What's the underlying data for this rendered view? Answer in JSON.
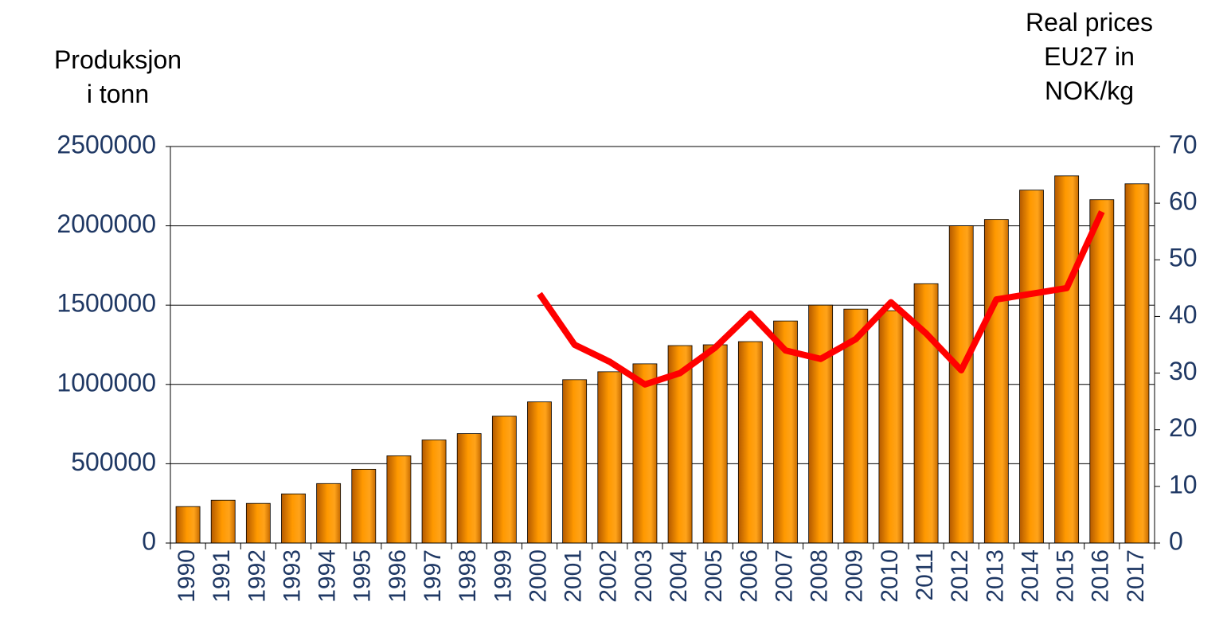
{
  "chart_data": {
    "type": "bar",
    "y_label": [
      "Produksjon",
      "i tonn"
    ],
    "y2_label": [
      "Real prices",
      "EU27 in",
      "NOK/kg"
    ],
    "categories": [
      "1990",
      "1991",
      "1992",
      "1993",
      "1994",
      "1995",
      "1996",
      "1997",
      "1998",
      "1999",
      "2000",
      "2001",
      "2002",
      "2003",
      "2004",
      "2005",
      "2006",
      "2007",
      "2008",
      "2009",
      "2010",
      "2011",
      "2012",
      "2013",
      "2014",
      "2015",
      "2016",
      "2017"
    ],
    "series": [
      {
        "type": "bar",
        "color": "#ff9900",
        "values": [
          230000,
          270000,
          250000,
          310000,
          375000,
          465000,
          550000,
          650000,
          690000,
          800000,
          890000,
          1030000,
          1080000,
          1130000,
          1245000,
          1250000,
          1270000,
          1400000,
          1500000,
          1475000,
          1465000,
          1635000,
          2000000,
          2040000,
          2225000,
          2315000,
          2165000,
          2265000
        ]
      },
      {
        "type": "line",
        "axis": "y2",
        "color": "#ff0000",
        "values": [
          null,
          null,
          null,
          null,
          null,
          null,
          null,
          null,
          null,
          null,
          44,
          35,
          32,
          28,
          30,
          34.5,
          40.5,
          34,
          32.5,
          36,
          42.5,
          37,
          30.5,
          43,
          44,
          45,
          58.5,
          null
        ]
      }
    ],
    "ylim": [
      0,
      2500000
    ],
    "yticks": [
      0,
      500000,
      1000000,
      1500000,
      2000000,
      2500000
    ],
    "y2lim": [
      0,
      70
    ],
    "y2ticks": [
      0,
      10,
      20,
      30,
      40,
      50,
      60,
      70
    ],
    "grid": true
  }
}
